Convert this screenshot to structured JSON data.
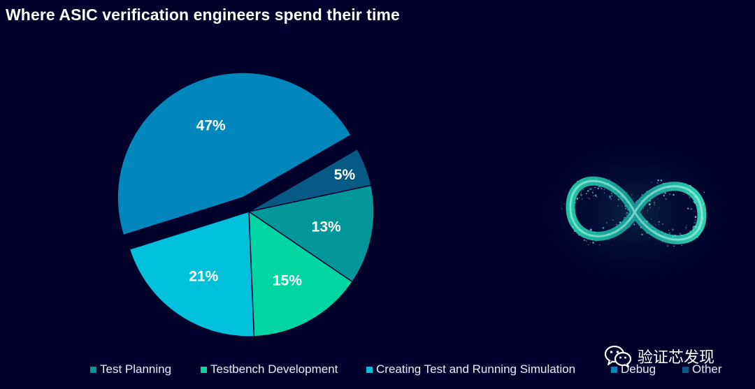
{
  "title": "Where ASIC verification engineers spend their time",
  "chart_data": {
    "type": "pie",
    "title": "Where ASIC verification engineers spend their time",
    "start_angle_deg": 60,
    "direction": "clockwise",
    "legend_position": "bottom",
    "slices": [
      {
        "label": "Other",
        "value": 5,
        "color": "#075a84",
        "display": "5%"
      },
      {
        "label": "Test Planning",
        "value": 13,
        "color": "#02979a",
        "display": "13%"
      },
      {
        "label": "Testbench Development",
        "value": 15,
        "color": "#00d6a3",
        "display": "15%"
      },
      {
        "label": "Creating Test and Running Simulation",
        "value": 21,
        "color": "#00c0dc",
        "display": "21%"
      },
      {
        "label": "Debug",
        "value": 47,
        "color": "#0287bd",
        "display": "47%",
        "exploded": true
      }
    ],
    "legend": [
      {
        "label": "Test Planning",
        "color": "#02979a"
      },
      {
        "label": "Testbench Development",
        "color": "#00d6a3"
      },
      {
        "label": "Creating Test and Running Simulation",
        "color": "#00c0dc"
      },
      {
        "label": "Debug",
        "color": "#0287bd"
      },
      {
        "label": "Other",
        "color": "#075a84"
      }
    ]
  },
  "image": {
    "name": "infinity-particles-image",
    "color": "#2ee8bf"
  },
  "watermark": {
    "icon": "wechat-icon",
    "text": "验证芯发现"
  }
}
